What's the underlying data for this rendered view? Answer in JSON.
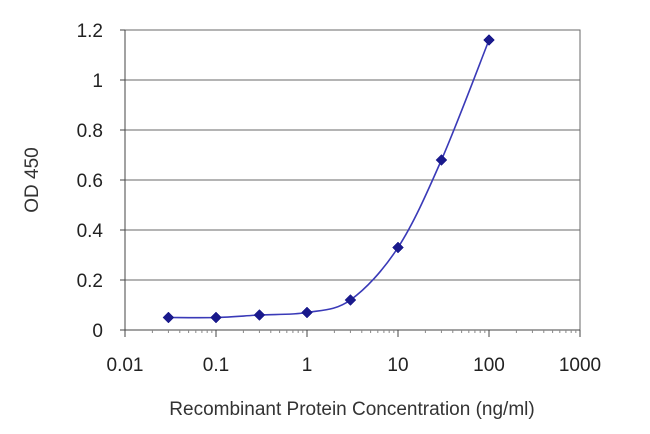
{
  "chart_data": {
    "type": "line",
    "title": "",
    "xlabel": "Recombinant Protein Concentration (ng/ml)",
    "ylabel": "OD 450",
    "xscale": "log",
    "xlim": [
      0.01,
      1000
    ],
    "ylim": [
      0,
      1.2
    ],
    "x_ticks": [
      0.01,
      0.1,
      1,
      10,
      100,
      1000
    ],
    "x_tick_labels": [
      "0.01",
      "0.1",
      "1",
      "10",
      "100",
      "1000"
    ],
    "y_ticks": [
      0,
      0.2,
      0.4,
      0.6,
      0.8,
      1,
      1.2
    ],
    "y_tick_labels": [
      "0",
      "0.2",
      "0.4",
      "0.6",
      "0.8",
      "1",
      "1.2"
    ],
    "grid": "horizontal",
    "legend": "none",
    "series": [
      {
        "color": "#1a1a8c",
        "marker": "diamond",
        "x": [
          0.03,
          0.1,
          0.3,
          1,
          3,
          10,
          30,
          100
        ],
        "y": [
          0.05,
          0.05,
          0.06,
          0.07,
          0.12,
          0.33,
          0.68,
          1.16
        ]
      }
    ]
  }
}
